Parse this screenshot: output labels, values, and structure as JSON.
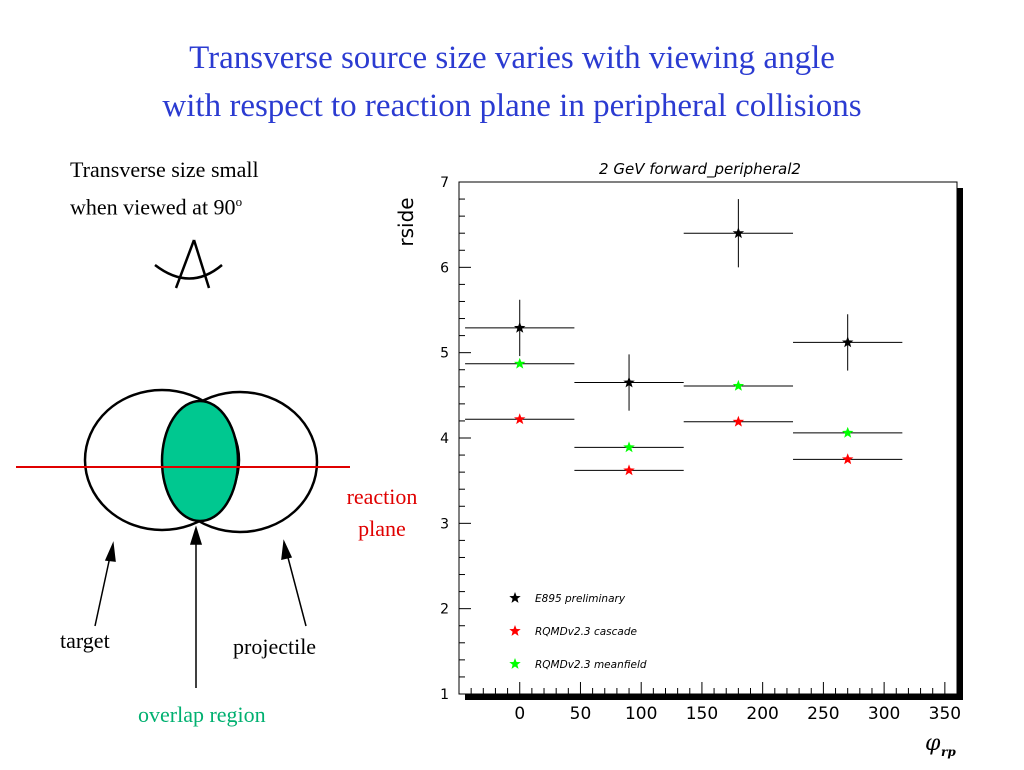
{
  "slide": {
    "title_line1": "Transverse source size varies with viewing angle",
    "title_line2": "with respect to reaction plane in peripheral collisions",
    "note_line1": "Transverse size small",
    "note_line2_prefix": "when viewed at 90",
    "note_sup": "o"
  },
  "diagram": {
    "reaction_line1": "reaction",
    "reaction_line2": "plane",
    "target": "target",
    "projectile": "projectile",
    "overlap": "overlap region",
    "colors": {
      "overlap_fill": "#00c890",
      "reaction_line": "#e00000",
      "overlap_text": "#00b070",
      "reaction_text": "#e00000"
    }
  },
  "chart_data": {
    "type": "scatter",
    "title": "2 GeV forward_peripheral2",
    "xlabel": "φ",
    "xlabel_sub": "rp",
    "ylabel": "rside",
    "xlim": [
      -50,
      360
    ],
    "ylim": [
      1,
      7
    ],
    "xticks": [
      0,
      50,
      100,
      150,
      200,
      250,
      300,
      350
    ],
    "yticks": [
      1,
      2,
      3,
      4,
      5,
      6,
      7
    ],
    "legend_position": "bottom-left",
    "series": [
      {
        "name": "E895 preliminary",
        "color": "#000000",
        "points": [
          {
            "x": 0,
            "y": 5.29,
            "xerr": 45,
            "yerr": 0.33
          },
          {
            "x": 90,
            "y": 4.65,
            "xerr": 45,
            "yerr": 0.33
          },
          {
            "x": 180,
            "y": 6.4,
            "xerr": 45,
            "yerr": 0.4
          },
          {
            "x": 270,
            "y": 5.12,
            "xerr": 45,
            "yerr": 0.33
          }
        ]
      },
      {
        "name": "RQMDv2.3 cascade",
        "color": "#ff0000",
        "points": [
          {
            "x": 0,
            "y": 4.22,
            "xerr": 45
          },
          {
            "x": 90,
            "y": 3.62,
            "xerr": 45
          },
          {
            "x": 180,
            "y": 4.19,
            "xerr": 45
          },
          {
            "x": 270,
            "y": 3.75,
            "xerr": 45
          }
        ]
      },
      {
        "name": "RQMDv2.3 meanfield",
        "color": "#00ff00",
        "points": [
          {
            "x": 0,
            "y": 4.87,
            "xerr": 45
          },
          {
            "x": 90,
            "y": 3.89,
            "xerr": 45
          },
          {
            "x": 180,
            "y": 4.61,
            "xerr": 45
          },
          {
            "x": 270,
            "y": 4.06,
            "xerr": 45
          }
        ]
      }
    ]
  }
}
